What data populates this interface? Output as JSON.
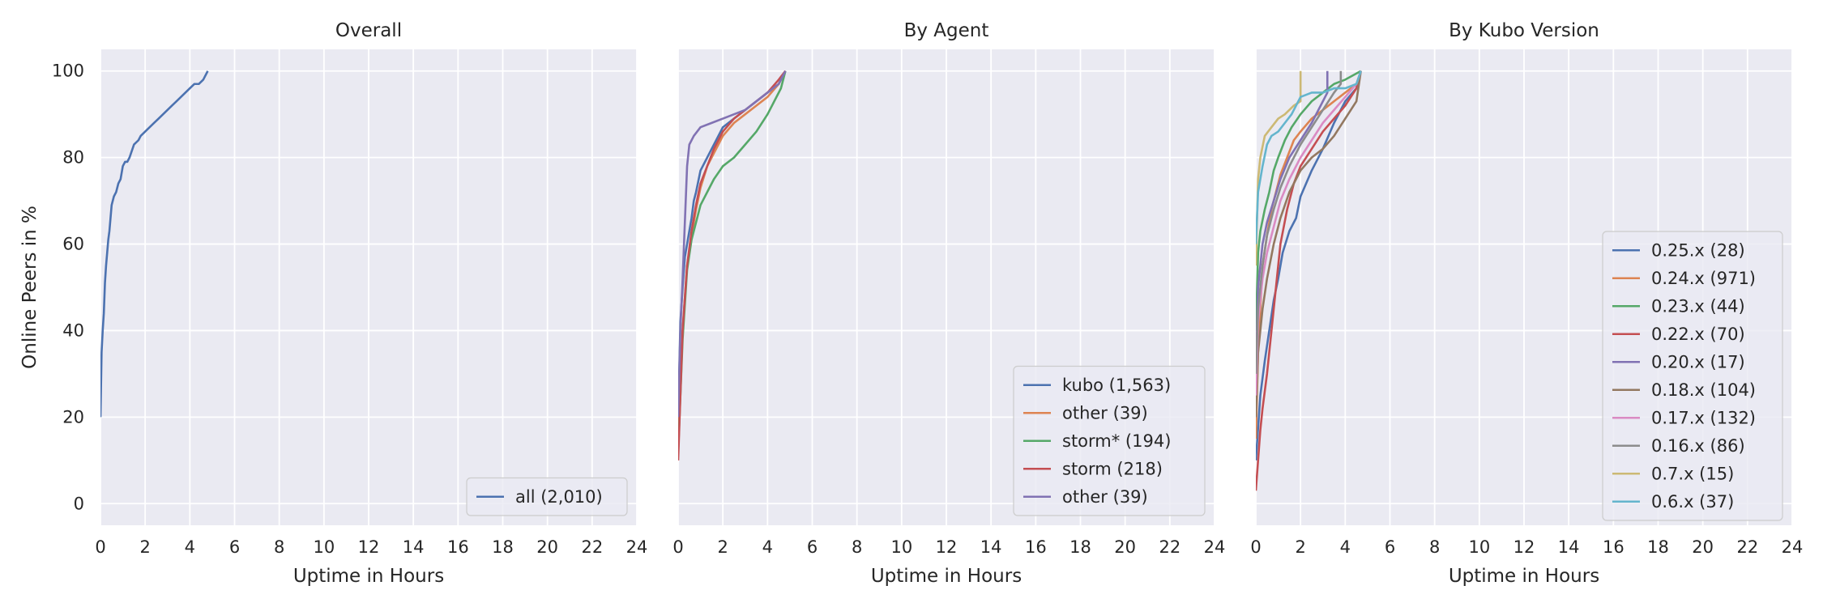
{
  "chart_data": [
    {
      "type": "line",
      "title": "Overall",
      "xlabel": "Uptime in Hours",
      "ylabel": "Online Peers in %",
      "xlim": [
        0,
        24
      ],
      "ylim": [
        -5,
        105
      ],
      "xticks": [
        0,
        2,
        4,
        6,
        8,
        10,
        12,
        14,
        16,
        18,
        20,
        22,
        24
      ],
      "yticks": [
        0,
        20,
        40,
        60,
        80,
        100
      ],
      "grid": true,
      "legend_position": "lower right",
      "series": [
        {
          "name": "all (2,010)",
          "color": "#4c72b0",
          "x": [
            0,
            0.05,
            0.1,
            0.15,
            0.2,
            0.25,
            0.3,
            0.35,
            0.4,
            0.5,
            0.6,
            0.7,
            0.8,
            0.9,
            1.0,
            1.1,
            1.2,
            1.3,
            1.5,
            1.7,
            1.8,
            2.0,
            2.2,
            2.4,
            2.6,
            2.8,
            3.0,
            3.2,
            3.4,
            3.6,
            3.8,
            4.0,
            4.2,
            4.4,
            4.6,
            4.8
          ],
          "y": [
            20,
            35,
            40,
            44,
            51,
            55,
            58,
            61,
            63,
            69,
            71,
            72,
            74,
            75,
            78,
            79,
            79,
            80,
            83,
            84,
            85,
            86,
            87,
            88,
            89,
            90,
            91,
            92,
            93,
            94,
            95,
            96,
            97,
            97,
            98,
            100
          ]
        }
      ]
    },
    {
      "type": "line",
      "title": "By Agent",
      "xlabel": "Uptime in Hours",
      "xlim": [
        0,
        24
      ],
      "ylim": [
        -5,
        105
      ],
      "xticks": [
        0,
        2,
        4,
        6,
        8,
        10,
        12,
        14,
        16,
        18,
        20,
        22,
        24
      ],
      "grid": true,
      "legend_position": "lower right",
      "series": [
        {
          "name": "kubo (1,563)",
          "color": "#4c72b0",
          "x": [
            0,
            0.1,
            0.2,
            0.3,
            0.4,
            0.5,
            0.6,
            0.7,
            0.8,
            1.0,
            1.2,
            1.5,
            1.8,
            2.0,
            2.5,
            3.0,
            3.5,
            4.0,
            4.5,
            4.8
          ],
          "y": [
            20,
            42,
            50,
            57,
            60,
            63,
            66,
            70,
            72,
            77,
            79,
            82,
            85,
            87,
            89,
            91,
            93,
            95,
            97,
            100
          ]
        },
        {
          "name": "other (39)",
          "color": "#dd8452",
          "x": [
            0,
            0.2,
            0.4,
            0.6,
            0.8,
            1.0,
            1.3,
            1.6,
            2.0,
            2.5,
            3.0,
            3.5,
            4.0,
            4.5,
            4.8
          ],
          "y": [
            15,
            40,
            55,
            62,
            68,
            73,
            78,
            81,
            85,
            88,
            90,
            92,
            94,
            97,
            100
          ]
        },
        {
          "name": "storm* (194)",
          "color": "#55a868",
          "x": [
            0,
            0.2,
            0.4,
            0.6,
            0.8,
            1.0,
            1.3,
            1.6,
            2.0,
            2.5,
            3.0,
            3.5,
            4.0,
            4.3,
            4.6,
            4.8
          ],
          "y": [
            12,
            38,
            54,
            61,
            65,
            69,
            72,
            75,
            78,
            80,
            83,
            86,
            90,
            93,
            96,
            100
          ]
        },
        {
          "name": "storm (218)",
          "color": "#c44e52",
          "x": [
            0,
            0.2,
            0.4,
            0.6,
            0.8,
            1.0,
            1.3,
            1.6,
            2.0,
            2.5,
            3.0,
            3.5,
            4.0,
            4.5,
            4.8
          ],
          "y": [
            10,
            40,
            55,
            63,
            69,
            74,
            78,
            82,
            86,
            89,
            91,
            93,
            95,
            98,
            100
          ]
        },
        {
          "name": "other (39)",
          "color": "#8172b3",
          "x": [
            0,
            0.1,
            0.2,
            0.3,
            0.4,
            0.5,
            0.7,
            1.0,
            1.5,
            2.0,
            2.5,
            3.0,
            3.5,
            4.0,
            4.5,
            4.8
          ],
          "y": [
            20,
            40,
            52,
            65,
            78,
            83,
            85,
            87,
            88,
            89,
            90,
            91,
            93,
            95,
            97,
            100
          ]
        }
      ]
    },
    {
      "type": "line",
      "title": "By Kubo Version",
      "xlabel": "Uptime in Hours",
      "xlim": [
        0,
        24
      ],
      "ylim": [
        -5,
        105
      ],
      "xticks": [
        0,
        2,
        4,
        6,
        8,
        10,
        12,
        14,
        16,
        18,
        20,
        22,
        24
      ],
      "grid": true,
      "legend_position": "center right",
      "series": [
        {
          "name": "0.25.x (28)",
          "color": "#4c72b0",
          "x": [
            0,
            0.2,
            0.4,
            0.6,
            0.8,
            1.0,
            1.2,
            1.5,
            1.8,
            2.0,
            2.5,
            3.0,
            3.5,
            4.0,
            4.5,
            4.7
          ],
          "y": [
            10,
            25,
            33,
            40,
            47,
            52,
            58,
            63,
            66,
            71,
            77,
            82,
            88,
            93,
            96,
            100
          ]
        },
        {
          "name": "0.24.x (971)",
          "color": "#dd8452",
          "x": [
            0,
            0.1,
            0.2,
            0.3,
            0.5,
            0.7,
            0.9,
            1.1,
            1.4,
            1.7,
            2.0,
            2.5,
            3.0,
            3.5,
            4.0,
            4.5,
            4.7
          ],
          "y": [
            15,
            35,
            45,
            55,
            62,
            68,
            72,
            76,
            80,
            84,
            86,
            89,
            91,
            93,
            95,
            97,
            100
          ]
        },
        {
          "name": "0.23.x (44)",
          "color": "#55a868",
          "x": [
            0,
            0.1,
            0.2,
            0.4,
            0.6,
            0.8,
            1.0,
            1.3,
            1.6,
            2.0,
            2.5,
            3.0,
            3.5,
            4.0,
            4.7
          ],
          "y": [
            40,
            58,
            63,
            68,
            72,
            77,
            80,
            84,
            87,
            90,
            93,
            95,
            97,
            98,
            100
          ]
        },
        {
          "name": "0.22.x (70)",
          "color": "#c44e52",
          "x": [
            0,
            0.1,
            0.2,
            0.3,
            0.5,
            0.7,
            0.9,
            1.1,
            1.4,
            1.7,
            2.0,
            2.5,
            3.0,
            3.5,
            4.0,
            4.5,
            4.7
          ],
          "y": [
            3,
            10,
            17,
            22,
            30,
            40,
            50,
            60,
            68,
            74,
            78,
            82,
            86,
            89,
            92,
            96,
            100
          ]
        },
        {
          "name": "0.20.x (17)",
          "color": "#8172b3",
          "x": [
            0,
            0.1,
            0.3,
            0.5,
            0.8,
            1.1,
            1.5,
            2.0,
            2.5,
            3.0,
            3.2,
            3.2
          ],
          "y": [
            30,
            50,
            60,
            65,
            70,
            75,
            80,
            84,
            88,
            93,
            95,
            100
          ]
        },
        {
          "name": "0.18.x (104)",
          "color": "#937860",
          "x": [
            0,
            0.1,
            0.3,
            0.5,
            0.8,
            1.1,
            1.5,
            2.0,
            2.5,
            3.0,
            3.5,
            4.0,
            4.5,
            4.7
          ],
          "y": [
            20,
            35,
            45,
            52,
            60,
            66,
            72,
            77,
            80,
            82,
            85,
            89,
            93,
            100
          ]
        },
        {
          "name": "0.17.x (132)",
          "color": "#da8bc3",
          "x": [
            0,
            0.1,
            0.3,
            0.5,
            0.8,
            1.1,
            1.5,
            2.0,
            2.5,
            3.0,
            3.5,
            4.0,
            4.5,
            4.7
          ],
          "y": [
            25,
            42,
            52,
            58,
            64,
            70,
            75,
            80,
            84,
            88,
            91,
            94,
            97,
            100
          ]
        },
        {
          "name": "0.16.x (86)",
          "color": "#8c8c8c",
          "x": [
            0,
            0.1,
            0.3,
            0.5,
            0.8,
            1.1,
            1.5,
            2.0,
            2.5,
            3.0,
            3.5,
            3.8,
            3.8
          ],
          "y": [
            30,
            45,
            55,
            62,
            68,
            73,
            78,
            83,
            87,
            91,
            95,
            97,
            100
          ]
        },
        {
          "name": "0.7.x (15)",
          "color": "#ccb974",
          "x": [
            0,
            0.1,
            0.2,
            0.4,
            0.7,
            1.0,
            1.3,
            1.7,
            2.0,
            2.0
          ],
          "y": [
            55,
            75,
            80,
            85,
            87,
            89,
            90,
            92,
            93,
            100
          ]
        },
        {
          "name": "0.6.x (37)",
          "color": "#64b5cd",
          "x": [
            0,
            0.1,
            0.2,
            0.3,
            0.5,
            0.7,
            1.0,
            1.3,
            1.6,
            2.0,
            2.5,
            3.0,
            3.5,
            4.0,
            4.5,
            4.7
          ],
          "y": [
            60,
            72,
            75,
            78,
            83,
            85,
            86,
            88,
            90,
            94,
            95,
            95,
            96,
            96,
            97,
            100
          ]
        }
      ]
    }
  ]
}
